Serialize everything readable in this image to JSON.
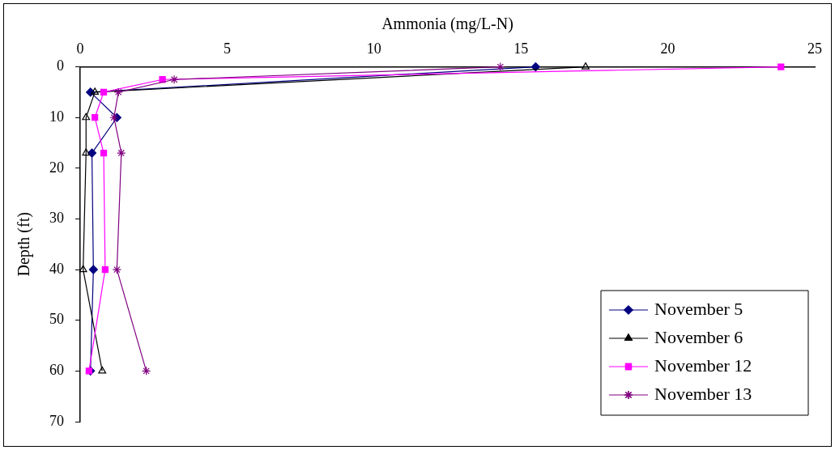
{
  "chart_data": {
    "type": "line",
    "xlabel": "Ammonia (mg/L-N)",
    "ylabel": "Depth (ft)",
    "xlim": [
      0,
      25
    ],
    "xticks": [
      0,
      5,
      10,
      15,
      20,
      25
    ],
    "ylim": [
      70,
      0
    ],
    "yticks": [
      0,
      10,
      20,
      30,
      40,
      50,
      60,
      70
    ],
    "grid": false,
    "legend": "bottom right",
    "series": [
      {
        "name": "November 5",
        "color": "#000080",
        "marker": "diamond",
        "x": [
          15.5,
          0.35,
          1.25,
          0.4,
          0.45,
          0.35
        ],
        "values": [
          0,
          5,
          10,
          17,
          40,
          60
        ]
      },
      {
        "name": "November 6",
        "color": "#000000",
        "marker": "triangle",
        "x": [
          17.2,
          0.5,
          0.2,
          0.2,
          0.1,
          0.75
        ],
        "values": [
          0,
          5,
          10,
          17,
          40,
          60
        ]
      },
      {
        "name": "November 12",
        "color": "#ff00ff",
        "marker": "square",
        "x": [
          23.85,
          2.8,
          0.8,
          0.5,
          0.8,
          0.85,
          0.3
        ],
        "values": [
          0,
          2.5,
          5,
          10,
          17,
          40,
          60
        ]
      },
      {
        "name": "November 13",
        "color": "#800080",
        "marker": "cross",
        "x": [
          14.3,
          3.2,
          1.3,
          1.15,
          1.4,
          1.25,
          2.25
        ],
        "values": [
          0,
          2.5,
          5,
          10,
          17,
          40,
          60
        ]
      }
    ]
  }
}
